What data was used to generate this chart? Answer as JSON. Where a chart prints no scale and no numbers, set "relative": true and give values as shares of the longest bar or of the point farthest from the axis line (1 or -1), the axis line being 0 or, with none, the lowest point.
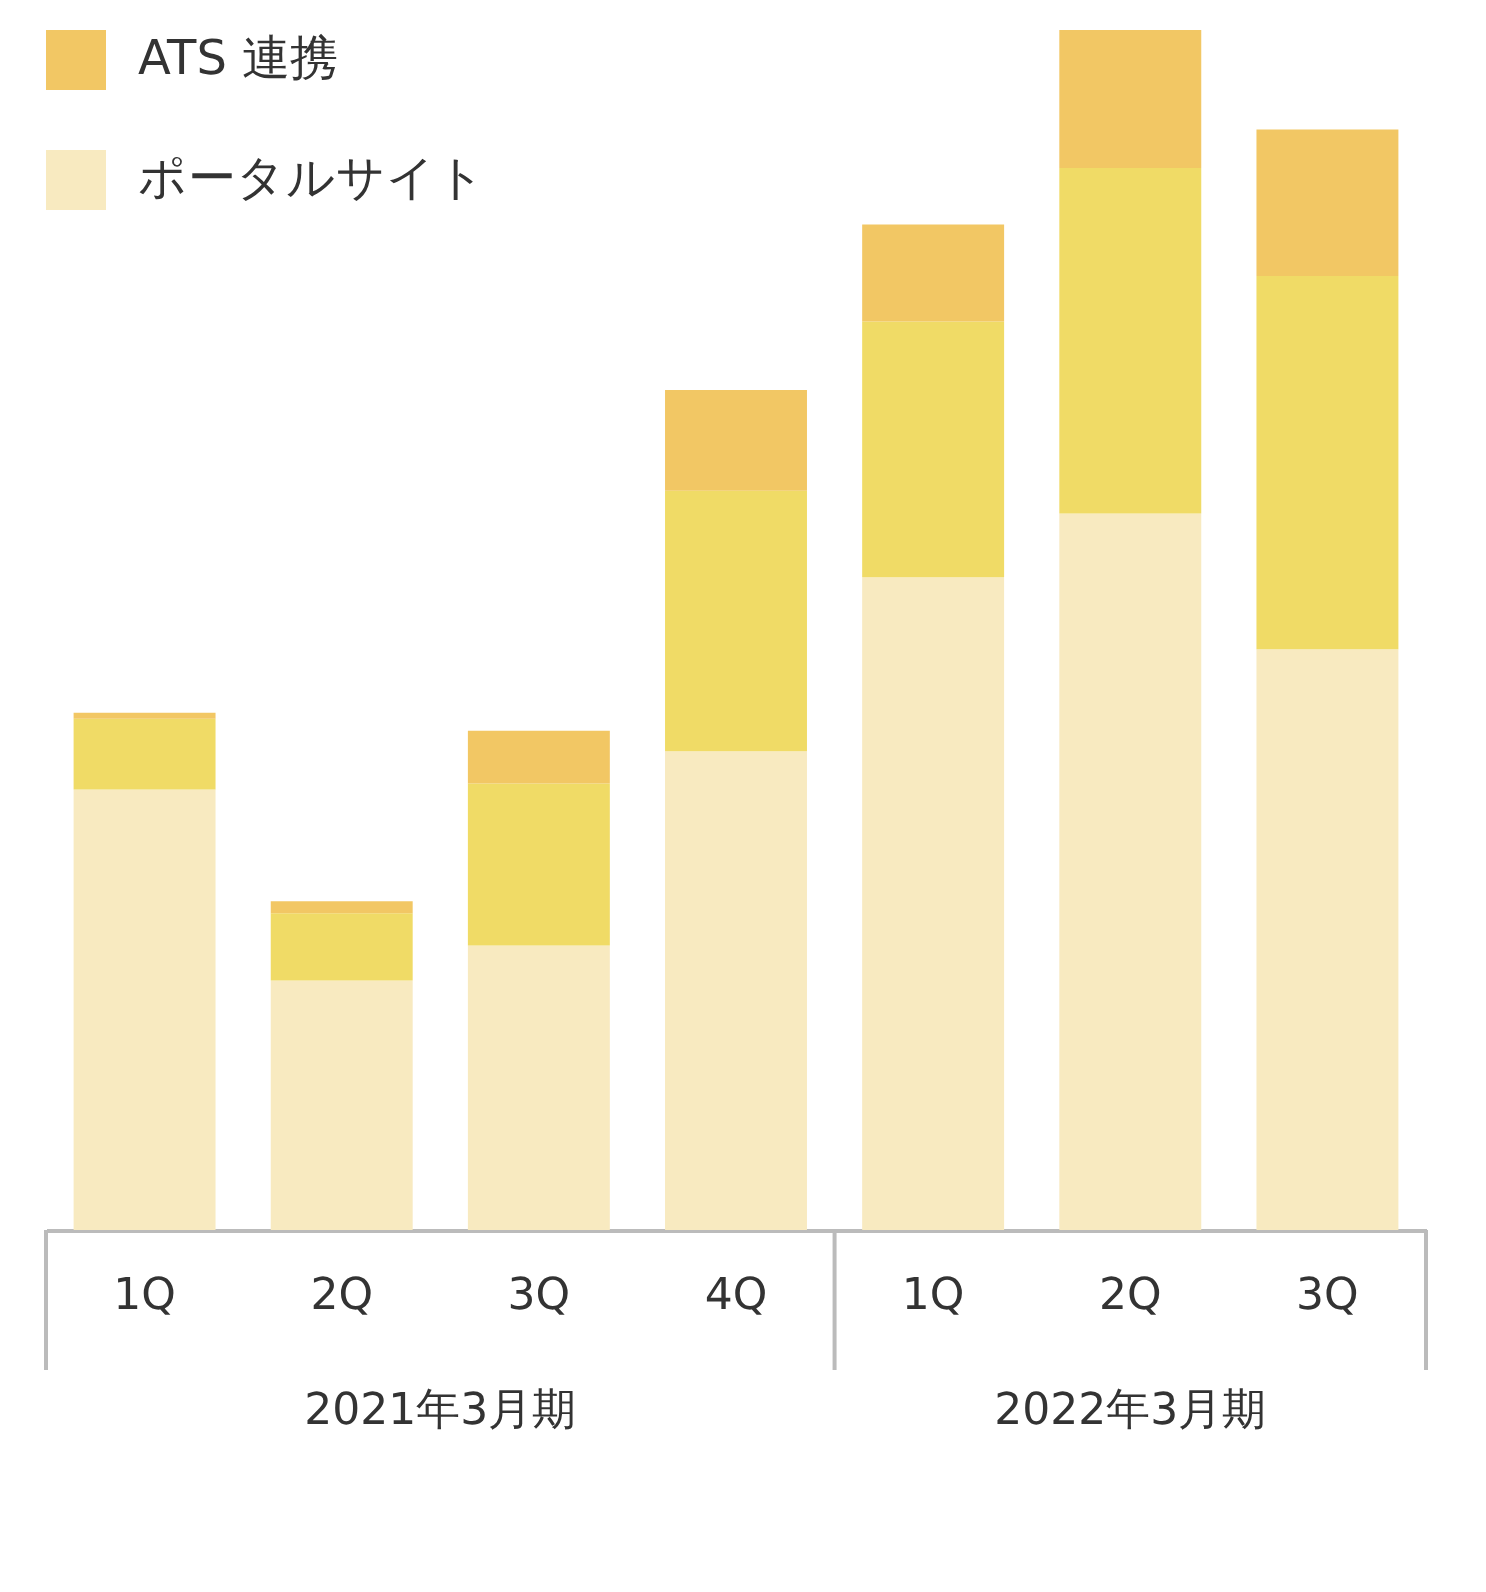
{
  "chart_data": {
    "type": "bar",
    "stacked": true,
    "relative": true,
    "legend": "top left",
    "categories": [
      "1Q",
      "2Q",
      "3Q",
      "4Q",
      "1Q",
      "2Q",
      "3Q"
    ],
    "series": [
      {
        "name": "ポータルサイト",
        "color": "#f8eac0",
        "values": [
          0.367,
          0.208,
          0.237,
          0.399,
          0.544,
          0.597,
          0.484
        ]
      },
      {
        "color": "#f0db66",
        "values": [
          0.059,
          0.056,
          0.135,
          0.217,
          0.213,
          0.288,
          0.311
        ]
      },
      {
        "name": "ATS 連携",
        "color": "#f2c764",
        "values": [
          0.005,
          0.01,
          0.044,
          0.084,
          0.081,
          0.115,
          0.122
        ]
      }
    ],
    "annotations": [
      "2021年3月期",
      "2022年3月期"
    ]
  }
}
